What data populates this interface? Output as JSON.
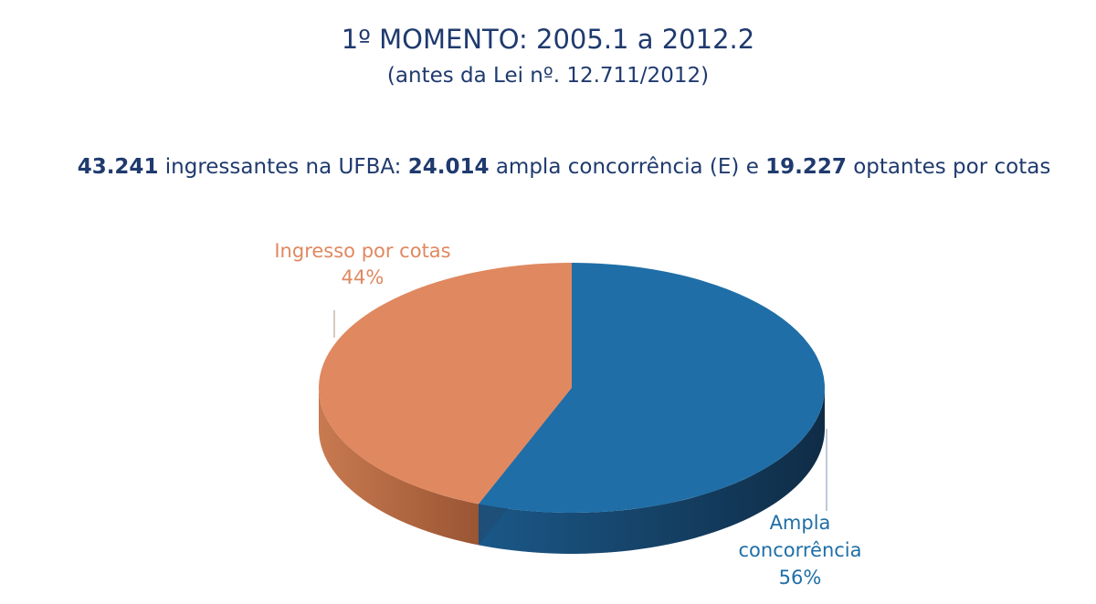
{
  "header": {
    "title": "1º MOMENTO: 2005.1 a 2012.2",
    "subtitle": "(antes da Lei nº. 12.711/2012)"
  },
  "summary": {
    "total": "43.241",
    "text1": " ingressantes na UFBA: ",
    "ampla": "24.014",
    "text2": " ampla concorrência (E)  e ",
    "cotas": "19.227",
    "text3": " optantes por cotas"
  },
  "chart_data": {
    "type": "pie",
    "style": "3d",
    "slices": [
      {
        "name": "Ampla concorrência",
        "value": 56,
        "label_lines": [
          "Ampla",
          "concorrência",
          "56%"
        ],
        "color": "#1f6ea7",
        "dark": "#163d5e"
      },
      {
        "name": "Ingresso por cotas",
        "value": 44,
        "label_lines": [
          "Ingresso por cotas",
          "44%"
        ],
        "color": "#e08860",
        "dark": "#a85f3c"
      }
    ]
  }
}
